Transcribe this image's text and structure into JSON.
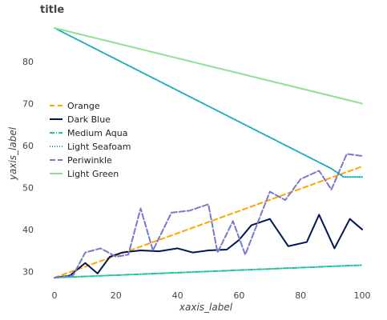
{
  "chart_data": {
    "type": "line",
    "title": "title",
    "xlabel": "xaxis_label",
    "ylabel": "yaxis_label",
    "xlim": [
      0,
      100
    ],
    "ylim": [
      27,
      88
    ],
    "xticks": [
      0,
      20,
      40,
      60,
      80,
      100
    ],
    "yticks": [
      30,
      40,
      50,
      60,
      70,
      80
    ],
    "grid": false,
    "legend_position": "left-middle",
    "series": [
      {
        "name": "Orange",
        "color": "#FFA500",
        "dash": "6,4",
        "x": [
          0,
          100
        ],
        "y": [
          28.5,
          55.0
        ]
      },
      {
        "name": "Dark Blue",
        "color": "#00184F",
        "dash": "",
        "x": [
          0,
          5,
          10,
          14,
          18,
          22,
          28,
          34,
          40,
          45,
          50,
          56,
          60,
          64,
          70,
          76,
          82,
          86,
          91,
          96,
          100
        ],
        "y": [
          28.5,
          29,
          32,
          29.5,
          33.5,
          34.5,
          35,
          34.8,
          35.5,
          34.5,
          35,
          35.2,
          37.5,
          41,
          42.5,
          36,
          37,
          43.5,
          35.5,
          42.5,
          40
        ]
      },
      {
        "name": "Medium Aqua",
        "color": "#20C0A0",
        "dash": "6,2,1,2",
        "x": [
          0,
          100
        ],
        "y": [
          28.5,
          31.5
        ]
      },
      {
        "name": "Light Seafoam",
        "color": "#14A9B8",
        "dash": "1,2",
        "x": [
          0,
          90,
          94,
          100
        ],
        "y": [
          88,
          54.5,
          52.5,
          52.5
        ]
      },
      {
        "name": "Periwinkle",
        "color": "#7878CC",
        "dash": "7,3",
        "x": [
          0,
          6,
          10,
          15,
          20,
          24,
          28,
          32,
          38,
          44,
          50,
          53,
          58,
          62,
          70,
          75,
          80,
          86,
          90,
          95,
          100
        ],
        "y": [
          28.5,
          29,
          34.5,
          35.5,
          33.5,
          34,
          45,
          35,
          44,
          44.5,
          46,
          34.5,
          42,
          34,
          49,
          47,
          52,
          54,
          49.5,
          58,
          57.5
        ]
      },
      {
        "name": "Light Green",
        "color": "#90E090",
        "dash": "",
        "x": [
          0,
          100
        ],
        "y": [
          88,
          70
        ]
      }
    ]
  }
}
